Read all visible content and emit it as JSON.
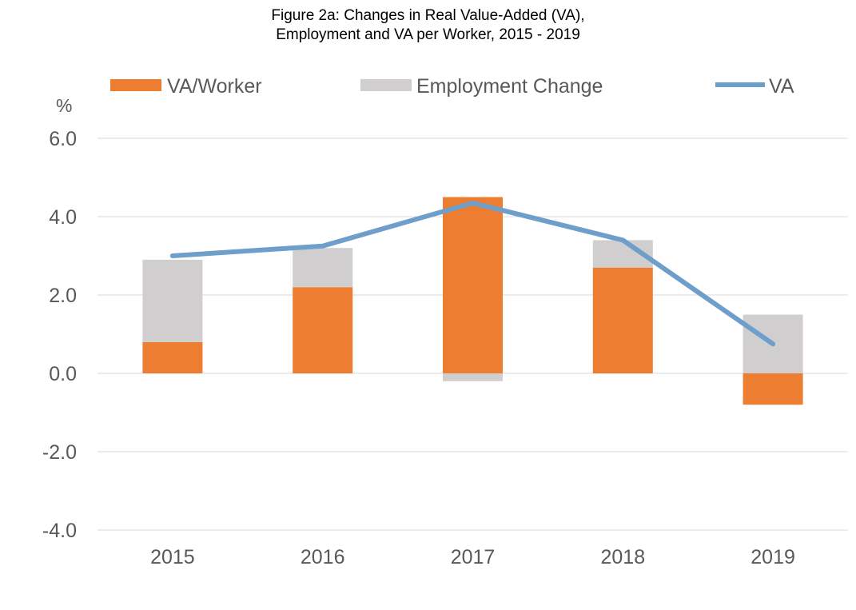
{
  "chart_data": {
    "type": "bar",
    "title_lines": [
      "Figure 2a: Changes in Real Value-Added (VA),",
      "Employment and VA per Worker, 2015 - 2019"
    ],
    "ylabel": "%",
    "xlabel": "",
    "categories": [
      "2015",
      "2016",
      "2017",
      "2018",
      "2019"
    ],
    "ylim": [
      -4.0,
      6.0
    ],
    "yticks": [
      "-4.0",
      "-2.0",
      "0.0",
      "2.0",
      "4.0",
      "6.0"
    ],
    "stacked": true,
    "grid": true,
    "legend_position": "top",
    "series": [
      {
        "name": "VA/Worker",
        "kind": "bar",
        "color": "#ED7D31",
        "values": [
          0.8,
          2.2,
          4.5,
          2.7,
          -0.8
        ]
      },
      {
        "name": "Employment Change",
        "kind": "bar",
        "color": "#D0CECE",
        "values": [
          2.1,
          1.0,
          -0.2,
          0.7,
          1.5
        ]
      },
      {
        "name": "VA",
        "kind": "line",
        "color": "#6E9ECA",
        "values": [
          3.0,
          3.25,
          4.35,
          3.4,
          0.75
        ]
      }
    ]
  }
}
